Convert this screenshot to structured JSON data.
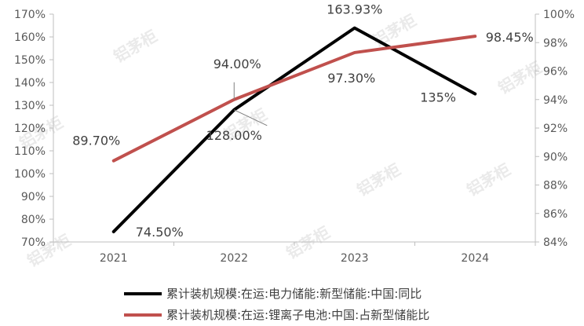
{
  "chart_data": {
    "type": "line",
    "categories": [
      "2021",
      "2022",
      "2023",
      "2024"
    ],
    "series": [
      {
        "name": "累计装机规模:在运:电力储能:新型储能:中国:同比",
        "axis": "left",
        "color": "#000000",
        "values": [
          74.5,
          128.0,
          163.93,
          135
        ],
        "labels": [
          "74.50%",
          "128.00%",
          "163.93%",
          "135%"
        ]
      },
      {
        "name": "累计装机规模:在运:锂离子电池:中国:占新型储能比",
        "axis": "right",
        "color": "#c0504d",
        "values": [
          89.7,
          94.0,
          97.3,
          98.45
        ],
        "labels": [
          "89.70%",
          "94.00%",
          "97.30%",
          "98.45%"
        ]
      }
    ],
    "y_left": {
      "range": [
        70,
        170
      ],
      "ticks": [
        "70%",
        "80%",
        "90%",
        "100%",
        "110%",
        "120%",
        "130%",
        "140%",
        "150%",
        "160%",
        "170%"
      ]
    },
    "y_right": {
      "range": [
        84,
        100
      ],
      "ticks": [
        "84%",
        "86%",
        "88%",
        "90%",
        "92%",
        "94%",
        "96%",
        "98%",
        "100%"
      ]
    },
    "grid": false,
    "legend_position": "bottom"
  },
  "watermark": {
    "text": "铝茅柜"
  }
}
